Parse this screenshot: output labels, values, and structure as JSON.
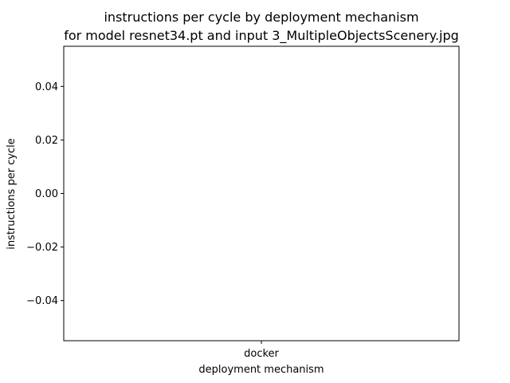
{
  "chart_data": {
    "type": "bar",
    "title": "instructions per cycle by deployment mechanism",
    "subtitle": "for model resnet34.pt and input 3_MultipleObjectsScenery.jpg",
    "xlabel": "deployment mechanism",
    "ylabel": "instructions per cycle",
    "categories": [
      "docker"
    ],
    "values": [
      0.0
    ],
    "ylim": [
      -0.055,
      0.055
    ],
    "yticks": [
      0.04,
      0.02,
      0.0,
      -0.02,
      -0.04
    ],
    "ytick_labels": [
      "0.04",
      "0.02",
      "0.00",
      "−0.02",
      "−0.04"
    ],
    "grid": false,
    "legend": "none"
  }
}
